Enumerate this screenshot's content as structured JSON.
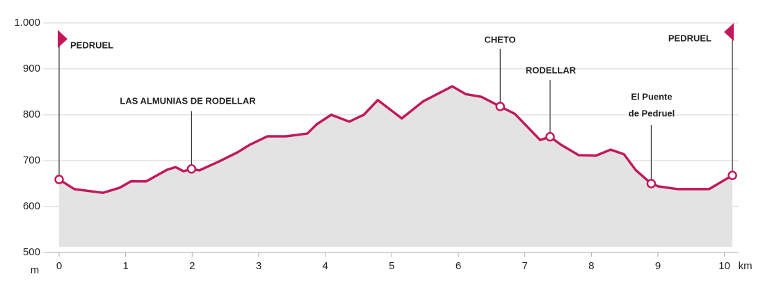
{
  "chart_data": {
    "type": "area",
    "x": [
      0,
      0.23,
      0.66,
      0.91,
      1.08,
      1.31,
      1.62,
      1.75,
      1.87,
      1.99,
      2.11,
      2.4,
      2.68,
      2.87,
      3.13,
      3.41,
      3.73,
      3.87,
      4.09,
      4.36,
      4.58,
      4.79,
      5.15,
      5.47,
      5.91,
      6.11,
      6.35,
      6.63,
      6.85,
      7.23,
      7.38,
      7.54,
      7.81,
      8.07,
      8.29,
      8.49,
      8.67,
      8.9,
      9.01,
      9.3,
      9.77,
      10.12
    ],
    "values": [
      659,
      638,
      630,
      641,
      655,
      655,
      680,
      686,
      677,
      682,
      679,
      698,
      718,
      735,
      753,
      753,
      759,
      779,
      800,
      785,
      800,
      832,
      792,
      829,
      862,
      845,
      839,
      818,
      802,
      745,
      752,
      735,
      712,
      711,
      724,
      714,
      679,
      650,
      644,
      638,
      638,
      668
    ],
    "color": "#c2185b",
    "fill": "#e3e3e3",
    "xlim": [
      0,
      10.15
    ],
    "ylim": [
      500,
      1000
    ],
    "xticks": [
      0,
      1,
      2,
      3,
      4,
      5,
      6,
      7,
      8,
      9,
      10
    ],
    "yticks": [
      500,
      600,
      700,
      800,
      900,
      {
        "value": 1000,
        "label": "1.000"
      }
    ],
    "xlabel": "km",
    "ylabel": "m",
    "grid": true,
    "annotations": [
      {
        "lines": [
          "PEDRUEL"
        ],
        "x": 0,
        "y": 659
      },
      {
        "lines": [
          "LAS ALMUNIAS DE RODELLAR"
        ],
        "x": 1.99,
        "y": 682
      },
      {
        "lines": [
          "CHETO"
        ],
        "x": 6.63,
        "y": 818
      },
      {
        "lines": [
          "RODELLAR"
        ],
        "x": 7.38,
        "y": 752
      },
      {
        "lines": [
          "El Puente",
          "de Pedruel"
        ],
        "x": 8.9,
        "y": 650
      },
      {
        "lines": [
          "PEDRUEL"
        ],
        "x": 10.12,
        "y": 668
      }
    ]
  }
}
